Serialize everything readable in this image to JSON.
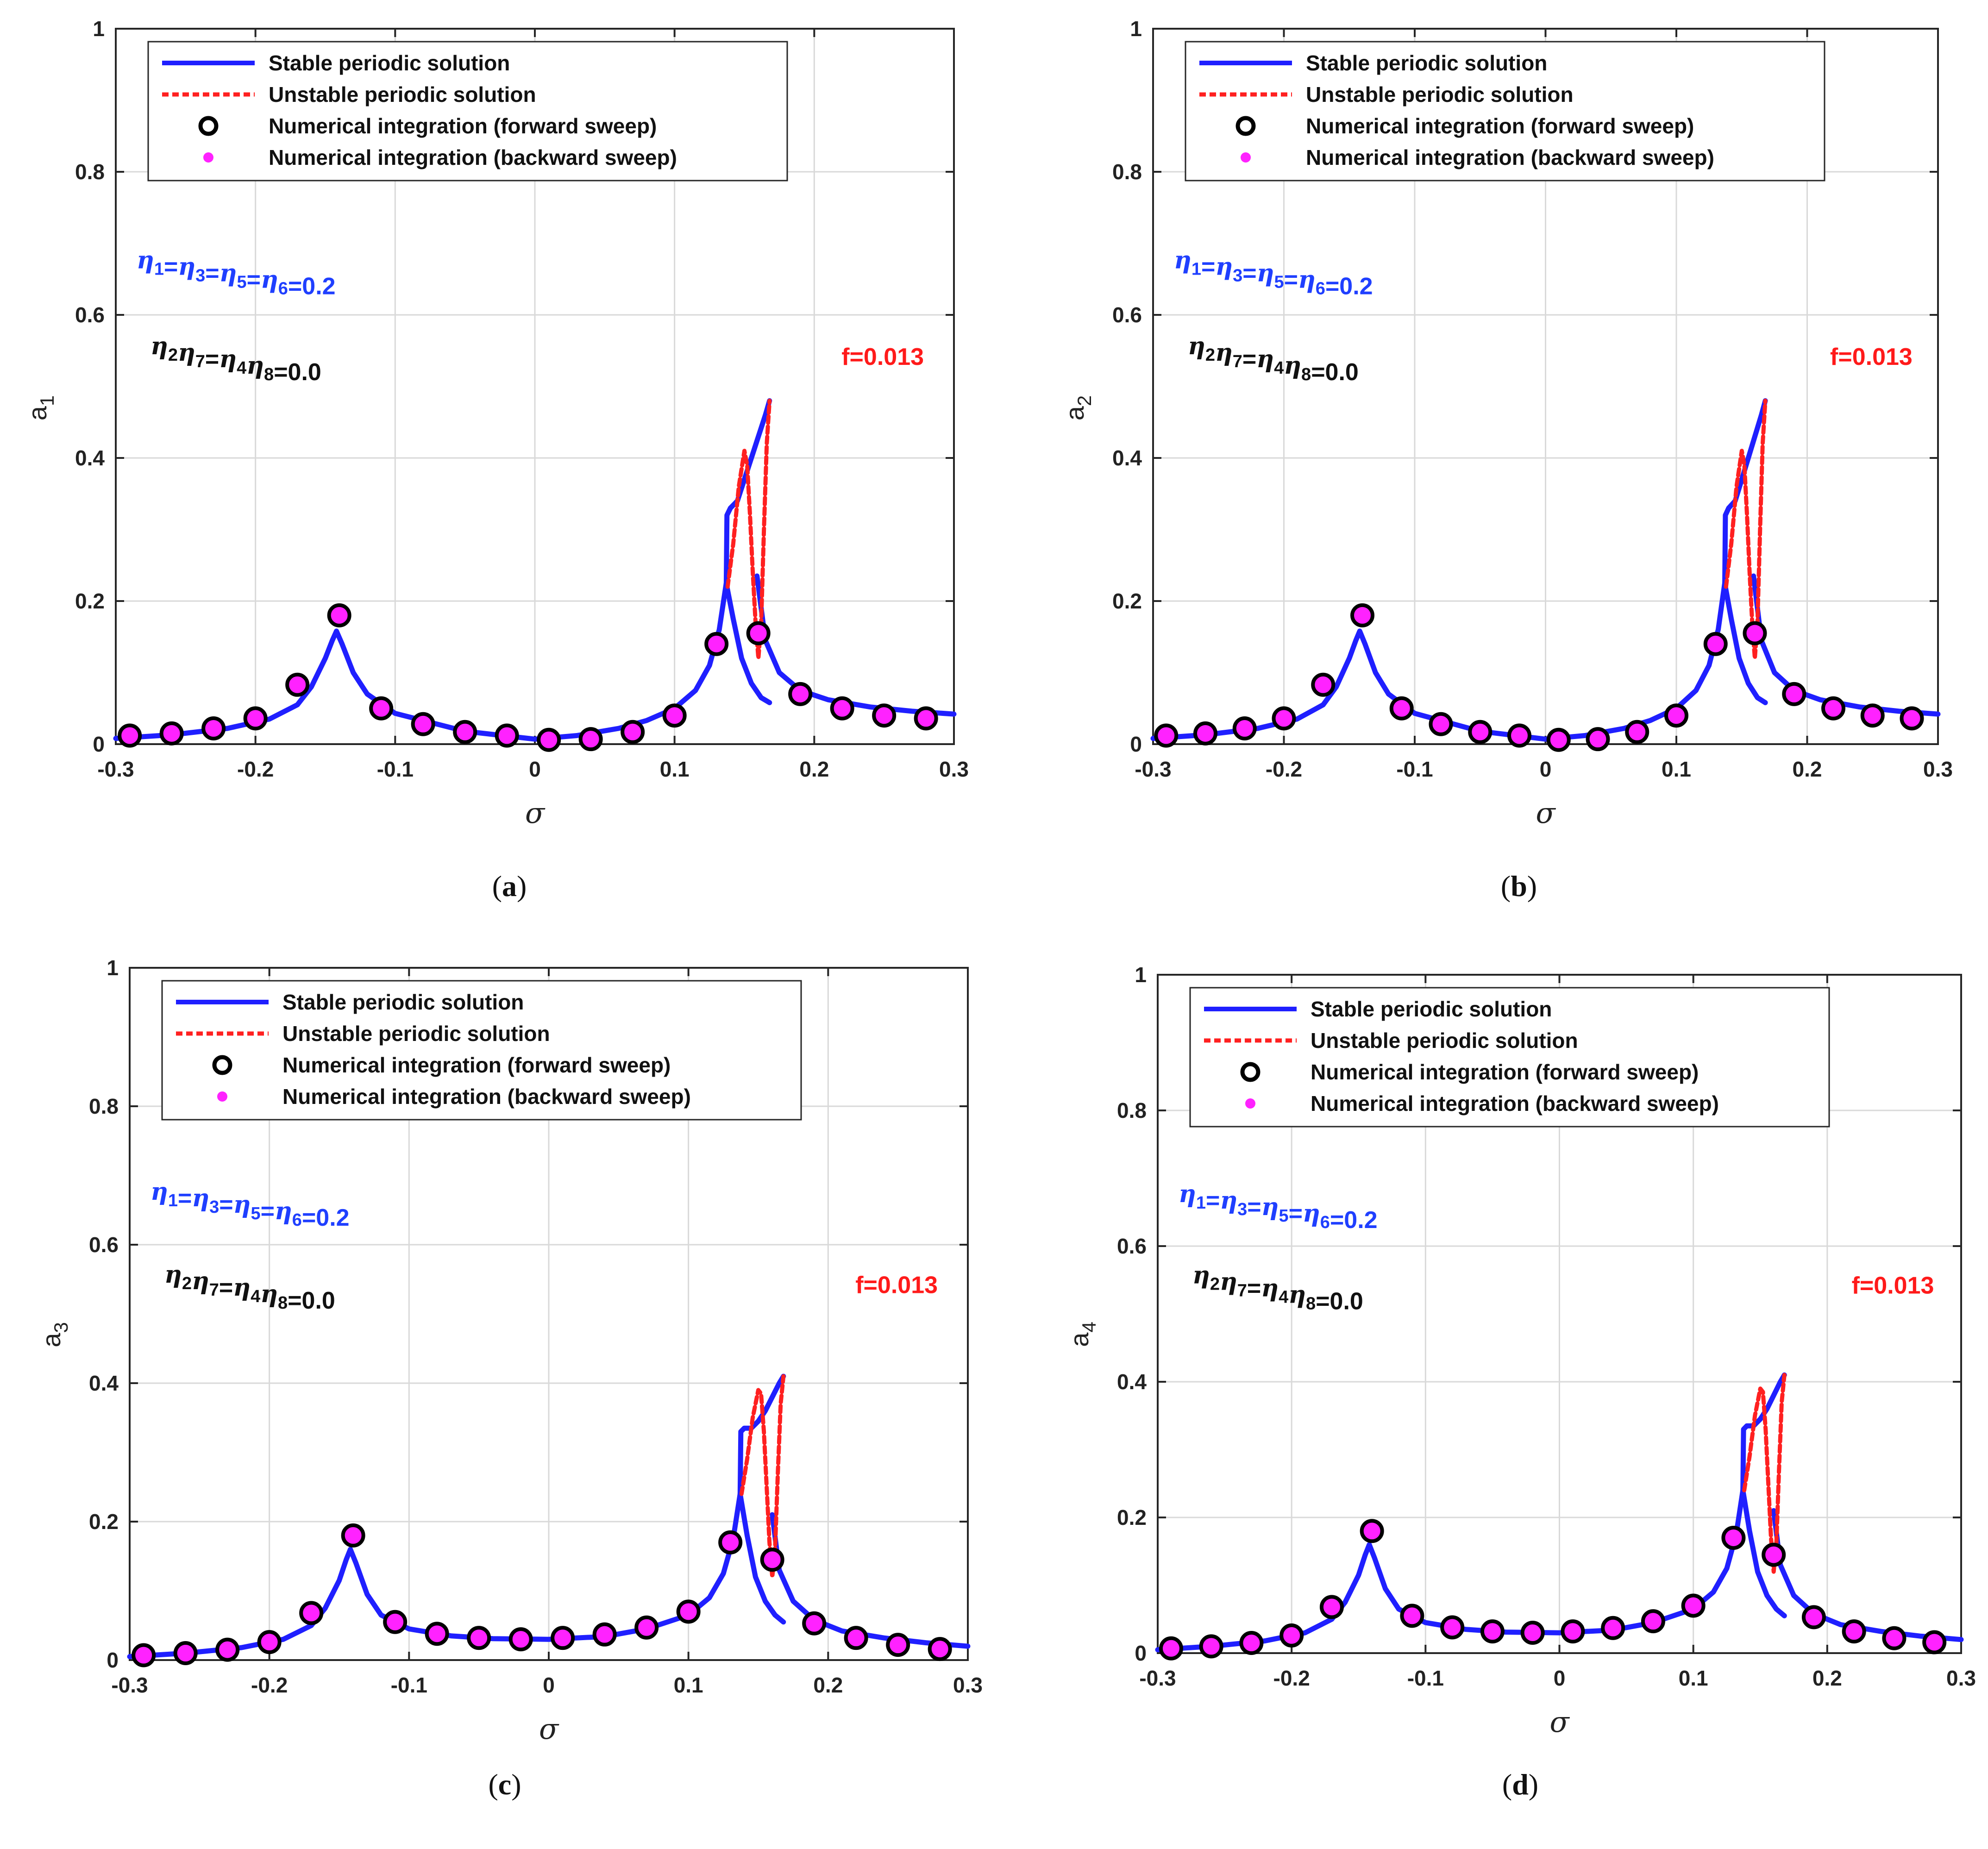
{
  "colors": {
    "stable": "#1f1fff",
    "unstable": "#ff2020",
    "forward_edge": "#000000",
    "backward_fill": "#ff22ff",
    "grid": "#d9d9d9",
    "axis": "#262626",
    "annot_blue": "#1f3fff",
    "annot_black": "#111111",
    "annot_red": "#ff1a1a"
  },
  "legend": {
    "stable": "Stable periodic solution",
    "unstable": "Unstable periodic solution",
    "forward": "Numerical integration (forward sweep)",
    "backward": "Numerical integration (backward sweep)"
  },
  "chart_data": [
    {
      "type": "line",
      "panel": "a",
      "caption": {
        "open": "(",
        "letter": "a",
        "close": ")"
      },
      "xlabel": "σ",
      "ylabel": {
        "base": "a",
        "sub": "1"
      },
      "xlim": [
        -0.3,
        0.3
      ],
      "ylim": [
        0,
        1
      ],
      "xticks": [
        "-0.3",
        "-0.2",
        "-0.1",
        "0",
        "0.1",
        "0.2",
        "0.3"
      ],
      "yticks": [
        "0",
        "0.2",
        "0.4",
        "0.6",
        "0.8",
        "1"
      ],
      "grid": true,
      "legend_position": "top-left",
      "annotations": {
        "eta_odd": "η1=η3=η5=η6=0.2",
        "eta_even": "η2η7=η4η8=0.0",
        "forcing": "f=0.013"
      },
      "series": [
        {
          "name": "Stable periodic solution (left peak)",
          "style": "stable",
          "x": [
            -0.3,
            -0.26,
            -0.22,
            -0.19,
            -0.17,
            -0.16,
            -0.15,
            -0.145,
            -0.142,
            -0.138,
            -0.13,
            -0.12,
            -0.1,
            -0.05,
            0.0,
            0.03,
            0.06,
            0.08,
            0.1,
            0.115,
            0.125,
            0.132,
            0.137,
            0.142,
            0.148,
            0.155,
            0.162,
            0.168
          ],
          "y": [
            0.008,
            0.013,
            0.022,
            0.035,
            0.055,
            0.08,
            0.12,
            0.145,
            0.158,
            0.14,
            0.1,
            0.07,
            0.043,
            0.018,
            0.007,
            0.012,
            0.022,
            0.033,
            0.05,
            0.075,
            0.11,
            0.16,
            0.225,
            0.175,
            0.12,
            0.085,
            0.065,
            0.058
          ]
        },
        {
          "name": "Stable periodic solution (upper branch)",
          "style": "stable",
          "x": [
            0.137,
            0.1375,
            0.14,
            0.145,
            0.15,
            0.155,
            0.16,
            0.165,
            0.168
          ],
          "y": [
            0.22,
            0.32,
            0.33,
            0.34,
            0.37,
            0.4,
            0.43,
            0.46,
            0.48
          ]
        },
        {
          "name": "Stable periodic solution (right tail)",
          "style": "stable",
          "x": [
            0.159,
            0.165,
            0.175,
            0.19,
            0.21,
            0.24,
            0.27,
            0.3
          ],
          "y": [
            0.235,
            0.145,
            0.1,
            0.075,
            0.062,
            0.052,
            0.046,
            0.042
          ]
        },
        {
          "name": "Unstable periodic solution",
          "style": "unstable",
          "x": [
            0.138,
            0.142,
            0.146,
            0.15,
            0.152,
            0.154,
            0.156,
            0.158,
            0.16,
            0.162,
            0.164,
            0.166,
            0.168
          ],
          "y": [
            0.22,
            0.28,
            0.36,
            0.41,
            0.39,
            0.32,
            0.24,
            0.17,
            0.12,
            0.17,
            0.3,
            0.42,
            0.48
          ]
        },
        {
          "name": "Numerical integration (forward sweep)",
          "style": "markers",
          "x": [
            -0.29,
            -0.26,
            -0.23,
            -0.2,
            -0.17,
            -0.14,
            -0.11,
            -0.08,
            -0.05,
            -0.02,
            0.01,
            0.04,
            0.07,
            0.1,
            0.13,
            0.16,
            0.19,
            0.22,
            0.25,
            0.28
          ],
          "y": [
            0.012,
            0.015,
            0.022,
            0.036,
            0.083,
            0.18,
            0.05,
            0.028,
            0.017,
            0.012,
            0.006,
            0.007,
            0.017,
            0.04,
            0.14,
            0.155,
            0.07,
            0.05,
            0.04,
            0.036
          ]
        }
      ]
    },
    {
      "type": "line",
      "panel": "b",
      "caption": {
        "open": "(",
        "letter": "b",
        "close": ")"
      },
      "xlabel": "σ",
      "ylabel": {
        "base": "a",
        "sub": "2"
      },
      "xlim": [
        -0.3,
        0.3
      ],
      "ylim": [
        0,
        1
      ],
      "xticks": [
        "-0.3",
        "-0.2",
        "-0.1",
        "0",
        "0.1",
        "0.2",
        "0.3"
      ],
      "yticks": [
        "0",
        "0.2",
        "0.4",
        "0.6",
        "0.8",
        "1"
      ],
      "grid": true,
      "legend_position": "top-left",
      "annotations": {
        "eta_odd": "η1=η3=η5=η6=0.2",
        "eta_even": "η2η7=η4η8=0.0",
        "forcing": "f=0.013"
      },
      "series": [
        {
          "name": "Stable periodic solution (left peak)",
          "style": "stable",
          "x": [
            -0.3,
            -0.26,
            -0.22,
            -0.19,
            -0.17,
            -0.16,
            -0.15,
            -0.145,
            -0.142,
            -0.138,
            -0.13,
            -0.12,
            -0.1,
            -0.05,
            0.0,
            0.03,
            0.06,
            0.08,
            0.1,
            0.115,
            0.125,
            0.132,
            0.137,
            0.142,
            0.148,
            0.155,
            0.162,
            0.168
          ],
          "y": [
            0.008,
            0.013,
            0.022,
            0.035,
            0.055,
            0.08,
            0.12,
            0.145,
            0.158,
            0.14,
            0.1,
            0.07,
            0.043,
            0.018,
            0.007,
            0.012,
            0.022,
            0.033,
            0.05,
            0.075,
            0.11,
            0.16,
            0.225,
            0.175,
            0.12,
            0.085,
            0.065,
            0.058
          ]
        },
        {
          "name": "Stable periodic solution (upper branch)",
          "style": "stable",
          "x": [
            0.137,
            0.1375,
            0.14,
            0.145,
            0.15,
            0.155,
            0.16,
            0.165,
            0.168
          ],
          "y": [
            0.22,
            0.32,
            0.33,
            0.34,
            0.37,
            0.4,
            0.43,
            0.46,
            0.48
          ]
        },
        {
          "name": "Stable periodic solution (right tail)",
          "style": "stable",
          "x": [
            0.159,
            0.165,
            0.175,
            0.19,
            0.21,
            0.24,
            0.27,
            0.3
          ],
          "y": [
            0.235,
            0.145,
            0.1,
            0.075,
            0.062,
            0.052,
            0.046,
            0.042
          ]
        },
        {
          "name": "Unstable periodic solution",
          "style": "unstable",
          "x": [
            0.138,
            0.142,
            0.146,
            0.15,
            0.152,
            0.154,
            0.156,
            0.158,
            0.16,
            0.162,
            0.164,
            0.166,
            0.168
          ],
          "y": [
            0.22,
            0.28,
            0.36,
            0.41,
            0.39,
            0.32,
            0.24,
            0.17,
            0.12,
            0.17,
            0.3,
            0.42,
            0.48
          ]
        },
        {
          "name": "Numerical integration (forward sweep)",
          "style": "markers",
          "x": [
            -0.29,
            -0.26,
            -0.23,
            -0.2,
            -0.17,
            -0.14,
            -0.11,
            -0.08,
            -0.05,
            -0.02,
            0.01,
            0.04,
            0.07,
            0.1,
            0.13,
            0.16,
            0.19,
            0.22,
            0.25,
            0.28
          ],
          "y": [
            0.012,
            0.015,
            0.022,
            0.036,
            0.083,
            0.18,
            0.05,
            0.028,
            0.017,
            0.012,
            0.006,
            0.007,
            0.017,
            0.04,
            0.14,
            0.155,
            0.07,
            0.05,
            0.04,
            0.036
          ]
        }
      ]
    },
    {
      "type": "line",
      "panel": "c",
      "caption": {
        "open": "(",
        "letter": "c",
        "close": ")"
      },
      "xlabel": "σ",
      "ylabel": {
        "base": "a",
        "sub": "3"
      },
      "xlim": [
        -0.3,
        0.3
      ],
      "ylim": [
        0,
        1
      ],
      "xticks": [
        "-0.3",
        "-0.2",
        "-0.1",
        "0",
        "0.1",
        "0.2",
        "0.3"
      ],
      "yticks": [
        "0",
        "0.2",
        "0.4",
        "0.6",
        "0.8",
        "1"
      ],
      "grid": true,
      "legend_position": "top-left",
      "annotations": {
        "eta_odd": "η1=η3=η5=η6=0.2",
        "eta_even": "η2η7=η4η8=0.0",
        "forcing": "f=0.013"
      },
      "series": [
        {
          "name": "Stable periodic solution (left peak)",
          "style": "stable",
          "x": [
            -0.3,
            -0.26,
            -0.22,
            -0.19,
            -0.17,
            -0.16,
            -0.15,
            -0.145,
            -0.142,
            -0.138,
            -0.13,
            -0.12,
            -0.1,
            -0.07,
            -0.04,
            0.0,
            0.04,
            0.07,
            0.1,
            0.115,
            0.125,
            0.132,
            0.137,
            0.142,
            0.148,
            0.155,
            0.162,
            0.168
          ],
          "y": [
            0.005,
            0.01,
            0.018,
            0.03,
            0.05,
            0.075,
            0.115,
            0.145,
            0.16,
            0.14,
            0.095,
            0.065,
            0.045,
            0.035,
            0.031,
            0.03,
            0.034,
            0.045,
            0.065,
            0.09,
            0.125,
            0.175,
            0.24,
            0.18,
            0.12,
            0.085,
            0.065,
            0.055
          ]
        },
        {
          "name": "Stable periodic solution (upper branch)",
          "style": "stable",
          "x": [
            0.137,
            0.1375,
            0.14,
            0.145,
            0.15,
            0.155,
            0.16,
            0.165,
            0.168
          ],
          "y": [
            0.24,
            0.33,
            0.335,
            0.335,
            0.345,
            0.36,
            0.38,
            0.4,
            0.41
          ]
        },
        {
          "name": "Stable periodic solution (right tail)",
          "style": "stable",
          "x": [
            0.16,
            0.165,
            0.175,
            0.19,
            0.21,
            0.24,
            0.27,
            0.3
          ],
          "y": [
            0.21,
            0.13,
            0.085,
            0.058,
            0.042,
            0.032,
            0.025,
            0.02
          ]
        },
        {
          "name": "Unstable periodic solution",
          "style": "unstable",
          "x": [
            0.138,
            0.142,
            0.146,
            0.15,
            0.152,
            0.154,
            0.156,
            0.158,
            0.16,
            0.162,
            0.164,
            0.166,
            0.168
          ],
          "y": [
            0.24,
            0.29,
            0.35,
            0.39,
            0.385,
            0.33,
            0.25,
            0.17,
            0.12,
            0.16,
            0.27,
            0.37,
            0.41
          ]
        },
        {
          "name": "Numerical integration (forward sweep)",
          "style": "markers",
          "x": [
            -0.29,
            -0.26,
            -0.23,
            -0.2,
            -0.17,
            -0.14,
            -0.11,
            -0.08,
            -0.05,
            -0.02,
            0.01,
            0.04,
            0.07,
            0.1,
            0.13,
            0.16,
            0.19,
            0.22,
            0.25,
            0.28
          ],
          "y": [
            0.007,
            0.01,
            0.015,
            0.026,
            0.068,
            0.18,
            0.055,
            0.038,
            0.032,
            0.03,
            0.032,
            0.037,
            0.047,
            0.07,
            0.17,
            0.145,
            0.053,
            0.032,
            0.022,
            0.016
          ]
        }
      ]
    },
    {
      "type": "line",
      "panel": "d",
      "caption": {
        "open": "(",
        "letter": "d",
        "close": ")"
      },
      "xlabel": "σ",
      "ylabel": {
        "base": "a",
        "sub": "4"
      },
      "xlim": [
        -0.3,
        0.3
      ],
      "ylim": [
        0,
        1
      ],
      "xticks": [
        "-0.3",
        "-0.2",
        "-0.1",
        "0",
        "0.1",
        "0.2",
        "0.3"
      ],
      "yticks": [
        "0",
        "0.2",
        "0.4",
        "0.6",
        "0.8",
        "1"
      ],
      "grid": true,
      "legend_position": "top-left",
      "annotations": {
        "eta_odd": "η1=η3=η5=η6=0.2",
        "eta_even": "η2η7=η4η8=0.0",
        "forcing": "f=0.013"
      },
      "series": [
        {
          "name": "Stable periodic solution (left peak)",
          "style": "stable",
          "x": [
            -0.3,
            -0.26,
            -0.22,
            -0.19,
            -0.17,
            -0.16,
            -0.15,
            -0.145,
            -0.142,
            -0.138,
            -0.13,
            -0.12,
            -0.1,
            -0.07,
            -0.04,
            0.0,
            0.04,
            0.07,
            0.1,
            0.115,
            0.125,
            0.132,
            0.137,
            0.142,
            0.148,
            0.155,
            0.162,
            0.168
          ],
          "y": [
            0.005,
            0.01,
            0.018,
            0.03,
            0.05,
            0.075,
            0.115,
            0.145,
            0.16,
            0.14,
            0.095,
            0.065,
            0.045,
            0.035,
            0.031,
            0.03,
            0.034,
            0.045,
            0.065,
            0.09,
            0.125,
            0.175,
            0.24,
            0.18,
            0.12,
            0.085,
            0.065,
            0.055
          ]
        },
        {
          "name": "Stable periodic solution (upper branch)",
          "style": "stable",
          "x": [
            0.137,
            0.1375,
            0.14,
            0.145,
            0.15,
            0.155,
            0.16,
            0.165,
            0.168
          ],
          "y": [
            0.24,
            0.33,
            0.335,
            0.335,
            0.345,
            0.36,
            0.38,
            0.4,
            0.41
          ]
        },
        {
          "name": "Stable periodic solution (right tail)",
          "style": "stable",
          "x": [
            0.16,
            0.165,
            0.175,
            0.19,
            0.21,
            0.24,
            0.27,
            0.3
          ],
          "y": [
            0.21,
            0.13,
            0.085,
            0.058,
            0.042,
            0.032,
            0.025,
            0.02
          ]
        },
        {
          "name": "Unstable periodic solution",
          "style": "unstable",
          "x": [
            0.138,
            0.142,
            0.146,
            0.15,
            0.152,
            0.154,
            0.156,
            0.158,
            0.16,
            0.162,
            0.164,
            0.166,
            0.168
          ],
          "y": [
            0.24,
            0.29,
            0.35,
            0.39,
            0.385,
            0.33,
            0.25,
            0.17,
            0.12,
            0.16,
            0.27,
            0.37,
            0.41
          ]
        },
        {
          "name": "Numerical integration (forward sweep)",
          "style": "markers",
          "x": [
            -0.29,
            -0.26,
            -0.23,
            -0.2,
            -0.17,
            -0.14,
            -0.11,
            -0.08,
            -0.05,
            -0.02,
            0.01,
            0.04,
            0.07,
            0.1,
            0.13,
            0.16,
            0.19,
            0.22,
            0.25,
            0.28
          ],
          "y": [
            0.007,
            0.01,
            0.015,
            0.026,
            0.068,
            0.18,
            0.055,
            0.038,
            0.032,
            0.03,
            0.032,
            0.037,
            0.047,
            0.07,
            0.17,
            0.145,
            0.053,
            0.032,
            0.022,
            0.016
          ]
        }
      ]
    }
  ]
}
